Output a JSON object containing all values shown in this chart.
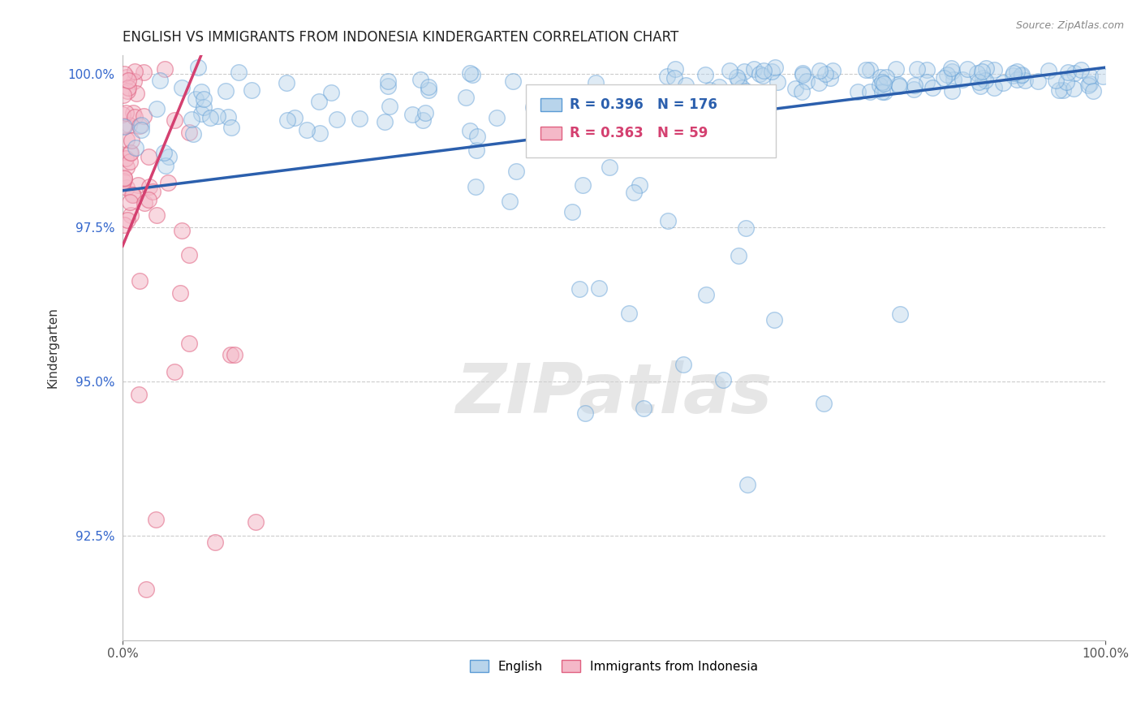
{
  "title": "ENGLISH VS IMMIGRANTS FROM INDONESIA KINDERGARTEN CORRELATION CHART",
  "source_text": "Source: ZipAtlas.com",
  "ylabel": "Kindergarten",
  "xmin": 0.0,
  "xmax": 1.0,
  "ymin": 0.908,
  "ymax": 1.003,
  "yticks": [
    0.925,
    0.95,
    0.975,
    1.0
  ],
  "ytick_labels": [
    "92.5%",
    "95.0%",
    "97.5%",
    "100.0%"
  ],
  "xtick_labels": [
    "0.0%",
    "100.0%"
  ],
  "xticks": [
    0.0,
    1.0
  ],
  "english_color": "#b8d4eb",
  "english_edge_color": "#5b9bd5",
  "indonesia_color": "#f4b8c8",
  "indonesia_edge_color": "#e06080",
  "trend_english_color": "#2b5fad",
  "trend_indonesia_color": "#d44070",
  "english_R": 0.396,
  "english_N": 176,
  "indonesia_R": 0.363,
  "indonesia_N": 59,
  "title_fontsize": 12,
  "label_fontsize": 11,
  "tick_fontsize": 11,
  "watermark_text": "ZIPatlas",
  "background_color": "#ffffff",
  "grid_color": "#cccccc",
  "ytick_color": "#3366cc"
}
